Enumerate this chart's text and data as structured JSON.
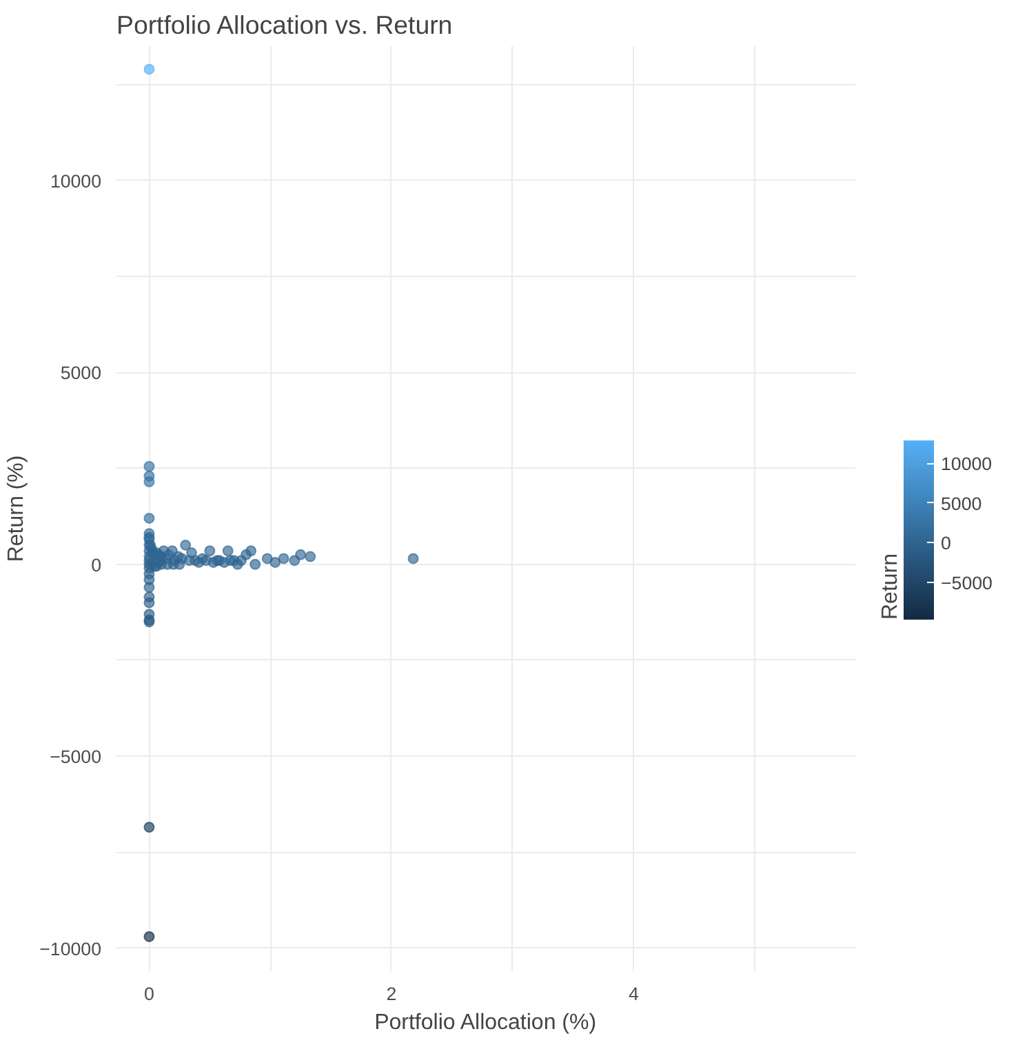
{
  "chart_data": {
    "type": "scatter",
    "title": "Portfolio Allocation vs. Return",
    "xlabel": "Portfolio Allocation (%)",
    "ylabel": "Return (%)",
    "clabel": "Return",
    "x": [
      0,
      0,
      0,
      0,
      0,
      0,
      0,
      0,
      0,
      0,
      0,
      0,
      0,
      0,
      0,
      0,
      0,
      0,
      0,
      0,
      0,
      0,
      0,
      0,
      0.01,
      0.02,
      0.03,
      0.04,
      0.06,
      0.08,
      0.09,
      0.1,
      0.12,
      0.14,
      0.16,
      0.19,
      0.21,
      0.24,
      0.27,
      0.3,
      0.33,
      0.35,
      0.38,
      0.41,
      0.44,
      0.47,
      0.5,
      0.53,
      0.56,
      0.58,
      0.62,
      0.65,
      0.67,
      0.7,
      0.73,
      0.76,
      0.8,
      0.84,
      0.875,
      0.975,
      1.04,
      1.11,
      1.2,
      1.25,
      1.33,
      2.18,
      0.02,
      0.04,
      0.06,
      0.08,
      0.1,
      0.15,
      0.2,
      0.25
    ],
    "values": [
      12900,
      2550,
      2300,
      2150,
      1200,
      800,
      650,
      500,
      350,
      200,
      100,
      0,
      -100,
      -250,
      -400,
      -600,
      -850,
      -1000,
      -1300,
      -1450,
      -1500,
      -6850,
      -9700,
      700,
      500,
      400,
      300,
      250,
      300,
      250,
      100,
      200,
      350,
      150,
      250,
      350,
      100,
      200,
      150,
      500,
      100,
      300,
      100,
      50,
      150,
      100,
      350,
      50,
      100,
      100,
      50,
      350,
      100,
      100,
      0,
      100,
      250,
      350,
      0,
      150,
      50,
      150,
      100,
      250,
      200,
      150,
      0,
      -50,
      -50,
      50,
      0,
      0,
      0,
      0
    ],
    "clim": [
      -9700,
      12900
    ],
    "cticks": [
      -5000,
      0,
      5000,
      10000
    ],
    "xlim": [
      -0.27,
      5.83
    ],
    "ylim": [
      -10600,
      13500
    ],
    "xticks": [
      0,
      2,
      4,
      {
        "value": 1,
        "label": null
      },
      {
        "value": 3,
        "label": null
      },
      {
        "value": 5,
        "label": null
      }
    ],
    "yticks": [
      -10000,
      -5000,
      0,
      5000,
      10000,
      {
        "value": -7500,
        "label": null
      },
      {
        "value": -2500,
        "label": null
      },
      {
        "value": 2500,
        "label": null
      },
      {
        "value": 7500,
        "label": null
      },
      {
        "value": 12500,
        "label": null
      }
    ],
    "grid": true,
    "marker": "circle"
  }
}
